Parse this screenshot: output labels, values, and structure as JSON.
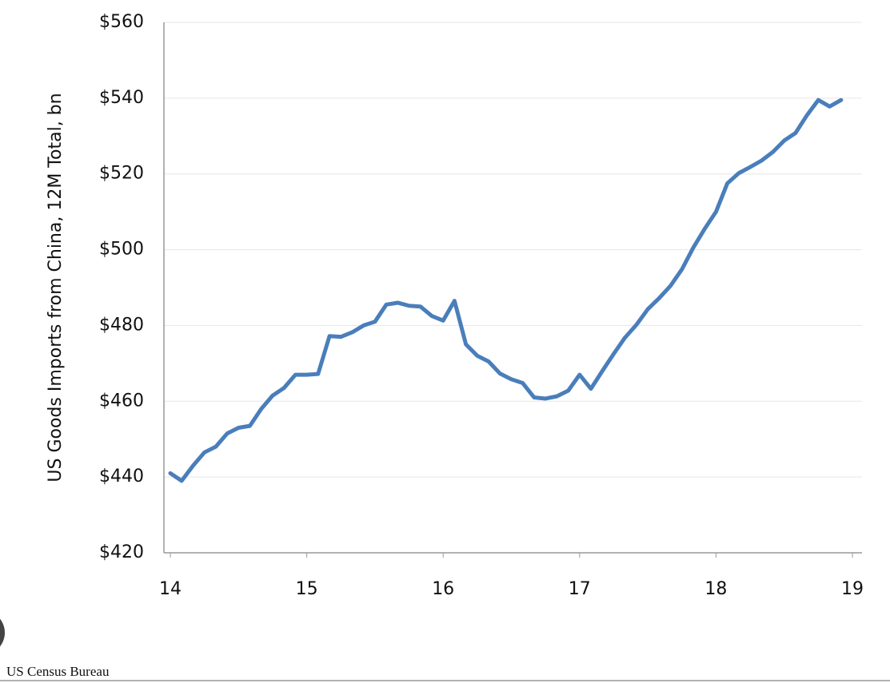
{
  "chart_data": {
    "type": "line",
    "y_label": "US Goods Imports from China, 12M Total, bn",
    "source": "US Census Bureau",
    "grid": true,
    "xlim": [
      14,
      19
    ],
    "xticks": [
      14,
      15,
      16,
      17,
      18,
      19
    ],
    "ylim": [
      420,
      560
    ],
    "yticks": [
      {
        "value": 420,
        "label": "$420"
      },
      {
        "value": 440,
        "label": "$440"
      },
      {
        "value": 460,
        "label": "$460"
      },
      {
        "value": 480,
        "label": "$480"
      },
      {
        "value": 500,
        "label": "$500"
      },
      {
        "value": 520,
        "label": "$520"
      },
      {
        "value": 540,
        "label": "$540"
      },
      {
        "value": 560,
        "label": "$560"
      }
    ],
    "x": [
      14,
      14.083,
      14.167,
      14.25,
      14.333,
      14.417,
      14.5,
      14.583,
      14.667,
      14.75,
      14.833,
      14.917,
      15,
      15.083,
      15.167,
      15.25,
      15.333,
      15.417,
      15.5,
      15.583,
      15.667,
      15.75,
      15.833,
      15.917,
      16,
      16.083,
      16.167,
      16.25,
      16.333,
      16.417,
      16.5,
      16.583,
      16.667,
      16.75,
      16.833,
      16.917,
      17,
      17.083,
      17.167,
      17.25,
      17.333,
      17.417,
      17.5,
      17.583,
      17.667,
      17.75,
      17.833,
      17.917,
      18,
      18.083,
      18.167,
      18.25,
      18.333,
      18.417,
      18.5,
      18.583,
      18.667,
      18.75,
      18.833,
      18.917
    ],
    "series": [
      {
        "color": "#4a7ebb",
        "values": [
          441,
          439,
          443,
          446.5,
          448,
          451.5,
          453,
          453.5,
          458,
          461.5,
          463.5,
          467,
          467,
          467.2,
          477.2,
          477,
          478.2,
          480,
          481,
          485.5,
          486,
          485.2,
          485,
          482.5,
          481.3,
          486.5,
          475,
          472,
          470.5,
          467.3,
          465.8,
          464.8,
          461,
          460.7,
          461.3,
          462.8,
          467,
          463.3,
          468,
          472.5,
          476.8,
          480.2,
          484.3,
          487.2,
          490.5,
          494.8,
          500.5,
          505.5,
          510,
          517.5,
          520.2,
          521.8,
          523.5,
          525.8,
          528.8,
          530.8,
          535.5,
          539.5,
          537.8,
          539.5
        ]
      }
    ]
  }
}
